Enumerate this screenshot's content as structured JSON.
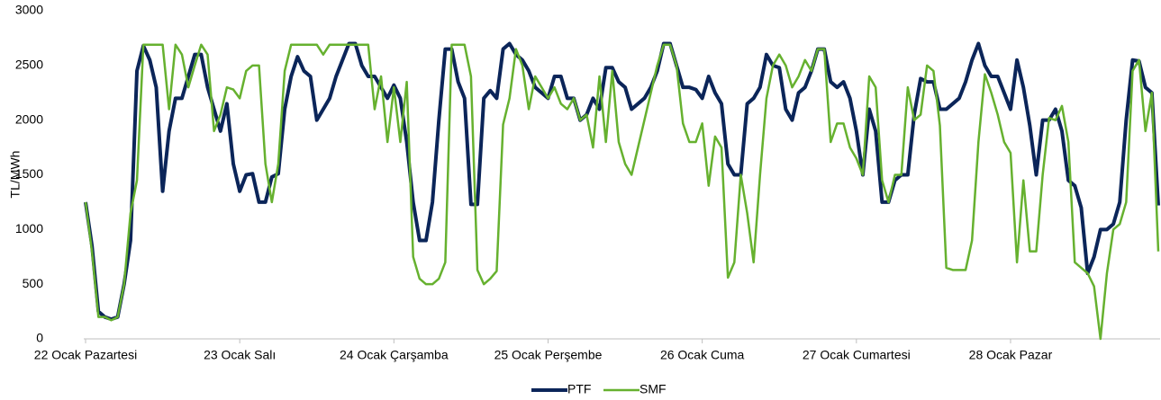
{
  "chart_data": {
    "type": "line",
    "y_label": "TL/MWh",
    "categories": [
      "22 Ocak Pazartesi",
      null,
      null,
      null,
      null,
      null,
      null,
      null,
      null,
      null,
      null,
      null,
      null,
      null,
      null,
      null,
      null,
      null,
      null,
      null,
      null,
      null,
      null,
      null,
      "23 Ocak Salı",
      null,
      null,
      null,
      null,
      null,
      null,
      null,
      null,
      null,
      null,
      null,
      null,
      null,
      null,
      null,
      null,
      null,
      null,
      null,
      null,
      null,
      null,
      null,
      "24 Ocak Çarşamba",
      null,
      null,
      null,
      null,
      null,
      null,
      null,
      null,
      null,
      null,
      null,
      null,
      null,
      null,
      null,
      null,
      null,
      null,
      null,
      null,
      null,
      null,
      null,
      "25 Ocak Perşembe",
      null,
      null,
      null,
      null,
      null,
      null,
      null,
      null,
      null,
      null,
      null,
      null,
      null,
      null,
      null,
      null,
      null,
      null,
      null,
      null,
      null,
      null,
      null,
      "26 Ocak Cuma",
      null,
      null,
      null,
      null,
      null,
      null,
      null,
      null,
      null,
      null,
      null,
      null,
      null,
      null,
      null,
      null,
      null,
      null,
      null,
      null,
      null,
      null,
      null,
      "27 Ocak Cumartesi",
      null,
      null,
      null,
      null,
      null,
      null,
      null,
      null,
      null,
      null,
      null,
      null,
      null,
      null,
      null,
      null,
      null,
      null,
      null,
      null,
      null,
      null,
      null,
      "28 Ocak Pazar",
      null,
      null,
      null,
      null,
      null,
      null,
      null,
      null,
      null,
      null,
      null,
      null,
      null,
      null,
      null,
      null,
      null,
      null,
      null,
      null,
      null,
      null,
      null
    ],
    "series": [
      {
        "name": "PTF",
        "color": "#0b2559",
        "values": [
          1250,
          850,
          250,
          200,
          180,
          200,
          500,
          900,
          2450,
          2680,
          2550,
          2300,
          1350,
          1900,
          2200,
          2200,
          2400,
          2600,
          2600,
          2300,
          2100,
          1900,
          2150,
          1600,
          1350,
          1500,
          1510,
          1250,
          1250,
          1480,
          1510,
          2100,
          2400,
          2580,
          2450,
          2400,
          2000,
          2100,
          2200,
          2400,
          2550,
          2700,
          2700,
          2500,
          2400,
          2400,
          2300,
          2200,
          2320,
          2200,
          1800,
          1250,
          900,
          900,
          1250,
          2000,
          2650,
          2650,
          2350,
          2200,
          1230,
          1230,
          2200,
          2270,
          2200,
          2650,
          2700,
          2600,
          2550,
          2450,
          2300,
          2250,
          2200,
          2400,
          2400,
          2200,
          2200,
          2000,
          2050,
          2200,
          2100,
          2480,
          2480,
          2350,
          2300,
          2100,
          2150,
          2200,
          2300,
          2450,
          2700,
          2700,
          2500,
          2300,
          2300,
          2280,
          2200,
          2400,
          2250,
          2150,
          1600,
          1500,
          1500,
          2150,
          2200,
          2300,
          2600,
          2500,
          2480,
          2100,
          2000,
          2250,
          2300,
          2450,
          2650,
          2650,
          2350,
          2300,
          2350,
          2200,
          1900,
          1500,
          2100,
          1900,
          1250,
          1250,
          1450,
          1500,
          1500,
          2050,
          2380,
          2350,
          2350,
          2100,
          2100,
          2150,
          2200,
          2350,
          2550,
          2700,
          2500,
          2400,
          2400,
          2250,
          2100,
          2550,
          2300,
          1950,
          1500,
          2000,
          2000,
          2100,
          1900,
          1450,
          1400,
          1200,
          600,
          750,
          1000,
          1000,
          1050,
          1250,
          2000,
          2550,
          2540,
          2300,
          2250,
          1220
        ]
      },
      {
        "name": "SMF",
        "color": "#66b12f",
        "values": [
          1250,
          800,
          200,
          200,
          170,
          200,
          500,
          1150,
          1450,
          2690,
          2690,
          2690,
          2690,
          2100,
          2690,
          2600,
          2300,
          2500,
          2690,
          2600,
          1900,
          2050,
          2300,
          2280,
          2200,
          2450,
          2500,
          2500,
          1600,
          1250,
          1600,
          2450,
          2690,
          2690,
          2690,
          2690,
          2690,
          2600,
          2690,
          2690,
          2690,
          2690,
          2690,
          2690,
          2690,
          2100,
          2400,
          1800,
          2300,
          1800,
          2350,
          750,
          550,
          500,
          500,
          550,
          700,
          2690,
          2690,
          2690,
          2400,
          630,
          500,
          550,
          620,
          1960,
          2200,
          2650,
          2500,
          2100,
          2400,
          2300,
          2200,
          2300,
          2150,
          2100,
          2200,
          2000,
          2050,
          1750,
          2400,
          1800,
          2450,
          1800,
          1600,
          1500,
          1750,
          2000,
          2250,
          2500,
          2690,
          2690,
          2500,
          1970,
          1800,
          1800,
          1970,
          1400,
          1850,
          1750,
          560,
          700,
          1500,
          1150,
          700,
          1500,
          2200,
          2500,
          2600,
          2500,
          2300,
          2400,
          2550,
          2450,
          2650,
          2650,
          1800,
          1970,
          1970,
          1750,
          1650,
          1500,
          2400,
          2300,
          1450,
          1250,
          1500,
          1500,
          2300,
          2000,
          2050,
          2500,
          2450,
          1950,
          650,
          630,
          630,
          630,
          900,
          1800,
          2420,
          2250,
          2050,
          1800,
          1700,
          700,
          1450,
          800,
          800,
          1500,
          2020,
          2000,
          2130,
          1800,
          700,
          650,
          600,
          480,
          0,
          600,
          1000,
          1050,
          1250,
          2450,
          2550,
          1900,
          2250,
          800
        ]
      }
    ],
    "ylim": [
      0,
      3000
    ],
    "yticks": [
      0,
      500,
      1000,
      1500,
      2000,
      2500,
      3000
    ],
    "grid": false,
    "legend": "bottom"
  }
}
